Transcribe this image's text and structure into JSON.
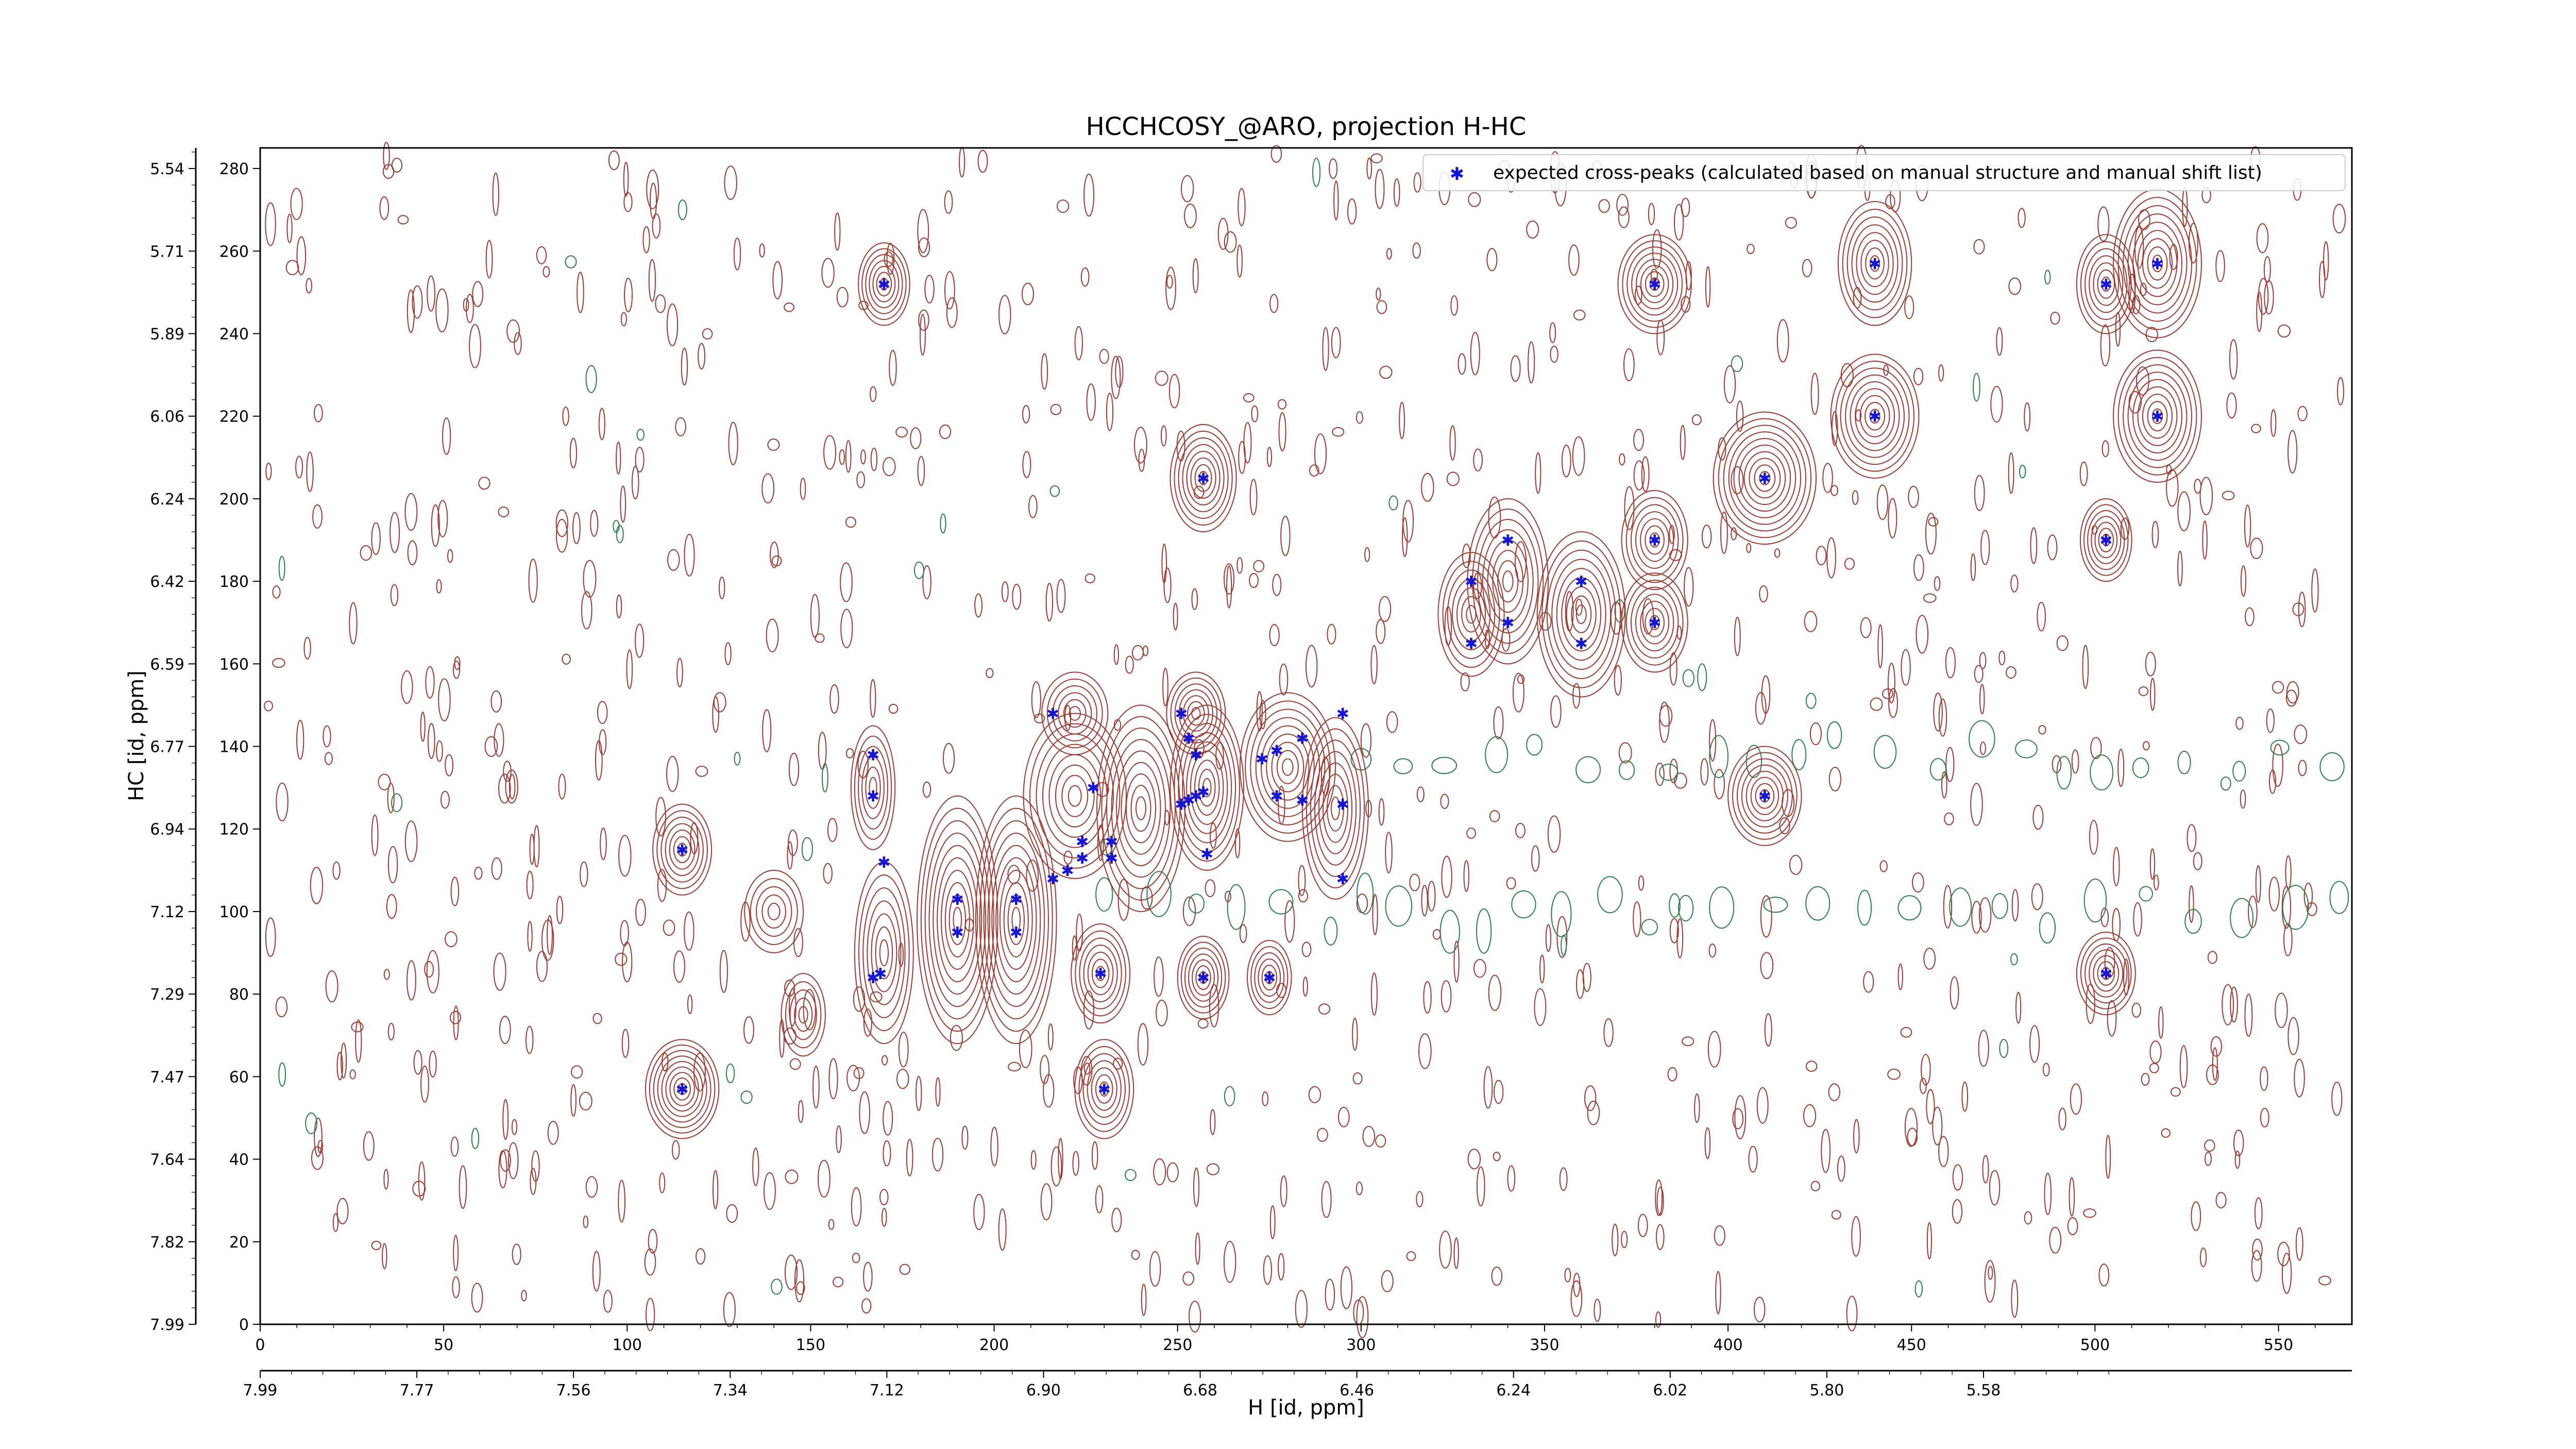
{
  "chart_data": {
    "type": "scatter",
    "title": "HCCHCOSY_@ARO, projection H-HC",
    "xlabel": "H [id, ppm]",
    "ylabel": "HC [id, ppm]",
    "xlim": [
      0,
      570
    ],
    "ylim": [
      0,
      285
    ],
    "x_ticks": [
      "0",
      "50",
      "100",
      "150",
      "200",
      "250",
      "300",
      "350",
      "400",
      "450",
      "500",
      "550"
    ],
    "y_ticks": [
      "0",
      "20",
      "40",
      "60",
      "80",
      "100",
      "120",
      "140",
      "160",
      "180",
      "200",
      "220",
      "240",
      "260",
      "280"
    ],
    "x_ppm_ticks": [
      "7.99",
      "7.77",
      "7.56",
      "7.34",
      "7.12",
      "6.90",
      "6.68",
      "6.46",
      "6.24",
      "6.02",
      "5.80",
      "5.58"
    ],
    "y_ppm_ticks": [
      "7.99",
      "7.82",
      "7.64",
      "7.47",
      "7.29",
      "7.12",
      "6.94",
      "6.77",
      "6.59",
      "6.42",
      "6.24",
      "6.06",
      "5.89",
      "5.71",
      "5.54"
    ],
    "legend": {
      "label": "expected cross-peaks (calculated based on manual structure and manual shift list)",
      "placement": "top-right"
    },
    "colors": {
      "positive_contours": "#9c3b33",
      "negative_contours": "#2e7d4f",
      "markers": "#1515d6"
    },
    "series": [
      {
        "name": "expected cross-peaks (calculated based on manual structure and manual shift list)",
        "points": [
          [
            170,
            252
          ],
          [
            115,
            57
          ],
          [
            115,
            115
          ],
          [
            167,
            138
          ],
          [
            167,
            128
          ],
          [
            170,
            112
          ],
          [
            167,
            84
          ],
          [
            169,
            85
          ],
          [
            190,
            103
          ],
          [
            190,
            95
          ],
          [
            206,
            103
          ],
          [
            206,
            95
          ],
          [
            216,
            148
          ],
          [
            227,
            130
          ],
          [
            232,
            117
          ],
          [
            232,
            113
          ],
          [
            229,
            85
          ],
          [
            230,
            57
          ],
          [
            224,
            117
          ],
          [
            224,
            113
          ],
          [
            220,
            110
          ],
          [
            216,
            108
          ],
          [
            251,
            148
          ],
          [
            253,
            142
          ],
          [
            255,
            138
          ],
          [
            251,
            126
          ],
          [
            253,
            127
          ],
          [
            255,
            128
          ],
          [
            257,
            129
          ],
          [
            258,
            114
          ],
          [
            257,
            84
          ],
          [
            273,
            137
          ],
          [
            277,
            139
          ],
          [
            284,
            142
          ],
          [
            295,
            148
          ],
          [
            277,
            128
          ],
          [
            284,
            127
          ],
          [
            295,
            126
          ],
          [
            295,
            108
          ],
          [
            275,
            84
          ],
          [
            257,
            205
          ],
          [
            330,
            180
          ],
          [
            330,
            165
          ],
          [
            340,
            190
          ],
          [
            340,
            170
          ],
          [
            360,
            180
          ],
          [
            360,
            165
          ],
          [
            380,
            190
          ],
          [
            380,
            170
          ],
          [
            380,
            252
          ],
          [
            410,
            205
          ],
          [
            410,
            128
          ],
          [
            440,
            257
          ],
          [
            440,
            220
          ],
          [
            503,
            252
          ],
          [
            517,
            257
          ],
          [
            517,
            220
          ],
          [
            503,
            190
          ],
          [
            503,
            85
          ]
        ]
      }
    ],
    "peaks": [
      [
        170,
        252,
        7,
        10,
        7
      ],
      [
        115,
        57,
        10,
        12,
        9
      ],
      [
        115,
        115,
        8,
        11,
        7
      ],
      [
        167,
        130,
        6,
        15,
        6
      ],
      [
        170,
        90,
        8,
        22,
        7
      ],
      [
        190,
        98,
        11,
        30,
        10
      ],
      [
        206,
        98,
        11,
        30,
        10
      ],
      [
        222,
        128,
        14,
        20,
        8
      ],
      [
        240,
        125,
        12,
        25,
        9
      ],
      [
        229,
        85,
        8,
        12,
        7
      ],
      [
        230,
        57,
        8,
        12,
        7
      ],
      [
        258,
        130,
        10,
        20,
        9
      ],
      [
        257,
        84,
        7,
        10,
        7
      ],
      [
        280,
        135,
        13,
        18,
        9
      ],
      [
        293,
        125,
        9,
        22,
        8
      ],
      [
        255,
        148,
        8,
        10,
        7
      ],
      [
        222,
        148,
        9,
        10,
        6
      ],
      [
        275,
        84,
        6,
        9,
        6
      ],
      [
        257,
        205,
        9,
        13,
        8
      ],
      [
        330,
        172,
        9,
        15,
        7
      ],
      [
        340,
        180,
        11,
        20,
        8
      ],
      [
        360,
        172,
        12,
        20,
        9
      ],
      [
        380,
        190,
        9,
        12,
        7
      ],
      [
        380,
        170,
        9,
        12,
        7
      ],
      [
        380,
        252,
        10,
        12,
        8
      ],
      [
        410,
        205,
        14,
        16,
        10
      ],
      [
        410,
        128,
        10,
        12,
        8
      ],
      [
        440,
        257,
        10,
        15,
        8
      ],
      [
        440,
        220,
        12,
        15,
        9
      ],
      [
        503,
        252,
        8,
        12,
        7
      ],
      [
        517,
        257,
        12,
        18,
        9
      ],
      [
        517,
        220,
        12,
        16,
        9
      ],
      [
        503,
        190,
        7,
        10,
        7
      ],
      [
        503,
        85,
        8,
        10,
        7
      ],
      [
        140,
        100,
        8,
        10,
        5
      ],
      [
        148,
        75,
        6,
        10,
        5
      ]
    ]
  }
}
